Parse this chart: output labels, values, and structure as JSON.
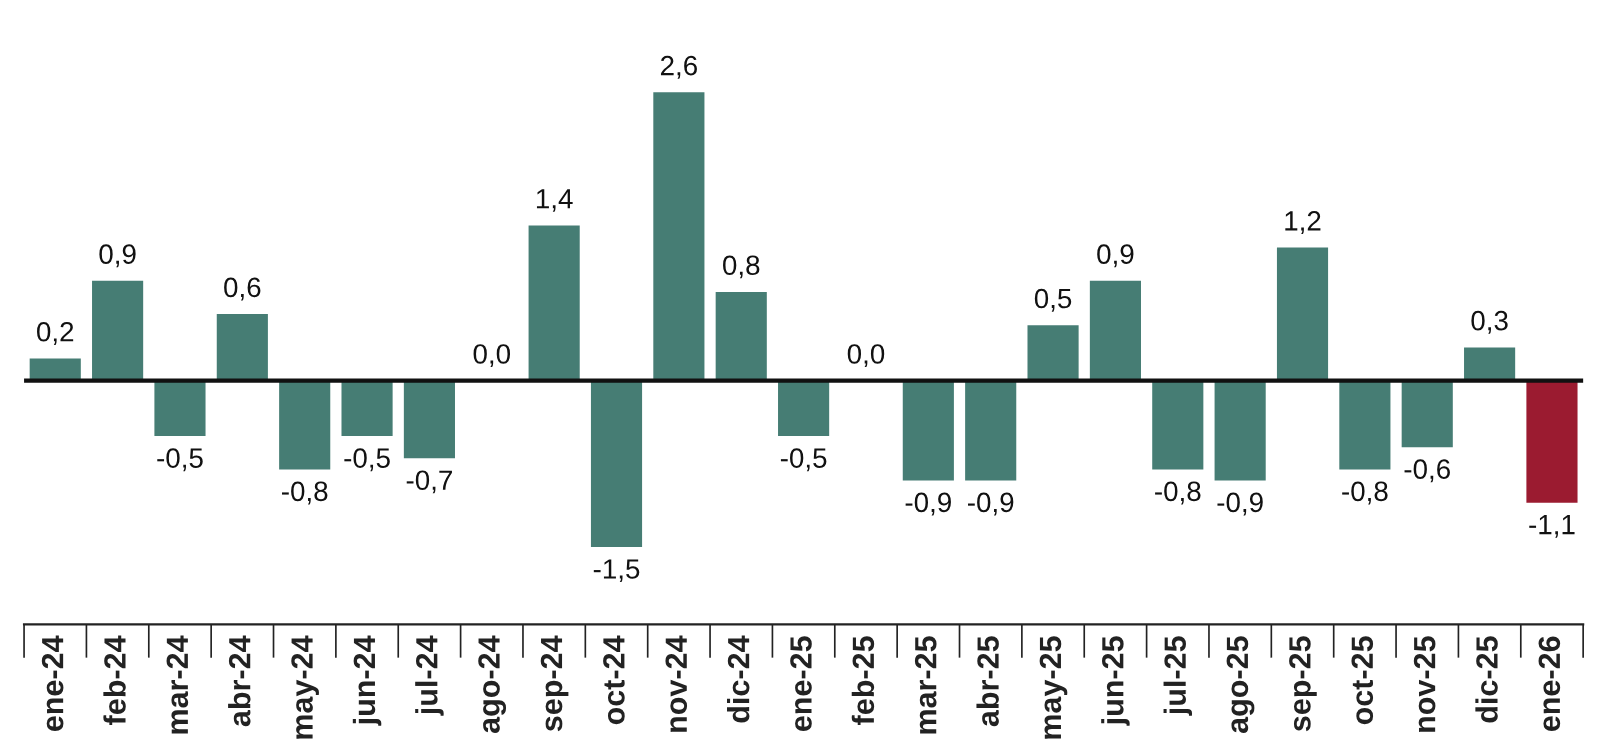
{
  "chart_data": {
    "type": "bar",
    "categories": [
      "ene-24",
      "feb-24",
      "mar-24",
      "abr-24",
      "may-24",
      "jun-24",
      "jul-24",
      "ago-24",
      "sep-24",
      "oct-24",
      "nov-24",
      "dic-24",
      "ene-25",
      "feb-25",
      "mar-25",
      "abr-25",
      "may-25",
      "jun-25",
      "jul-25",
      "ago-25",
      "sep-25",
      "oct-25",
      "nov-25",
      "dic-25",
      "ene-26"
    ],
    "values": [
      0.2,
      0.9,
      -0.5,
      0.6,
      -0.8,
      -0.5,
      -0.7,
      0.0,
      1.4,
      -1.5,
      2.6,
      0.8,
      -0.5,
      0.0,
      -0.9,
      -0.9,
      0.5,
      0.9,
      -0.8,
      -0.9,
      1.2,
      -0.8,
      -0.6,
      0.3,
      -1.1
    ],
    "colors": [
      "#467d74",
      "#467d74",
      "#467d74",
      "#467d74",
      "#467d74",
      "#467d74",
      "#467d74",
      "#467d74",
      "#467d74",
      "#467d74",
      "#467d74",
      "#467d74",
      "#467d74",
      "#467d74",
      "#467d74",
      "#467d74",
      "#467d74",
      "#467d74",
      "#467d74",
      "#467d74",
      "#467d74",
      "#467d74",
      "#467d74",
      "#467d74",
      "#9b1b30"
    ],
    "value_labels": [
      "0,2",
      "0,9",
      "-0,5",
      "0,6",
      "-0,8",
      "-0,5",
      "-0,7",
      "0,0",
      "1,4",
      "-1,5",
      "2,6",
      "0,8",
      "-0,5",
      "0,0",
      "-0,9",
      "-0,9",
      "0,5",
      "0,9",
      "-0,8",
      "-0,9",
      "1,2",
      "-0,8",
      "-0,6",
      "0,3",
      "-1,1"
    ],
    "grid": false,
    "legend": false
  }
}
